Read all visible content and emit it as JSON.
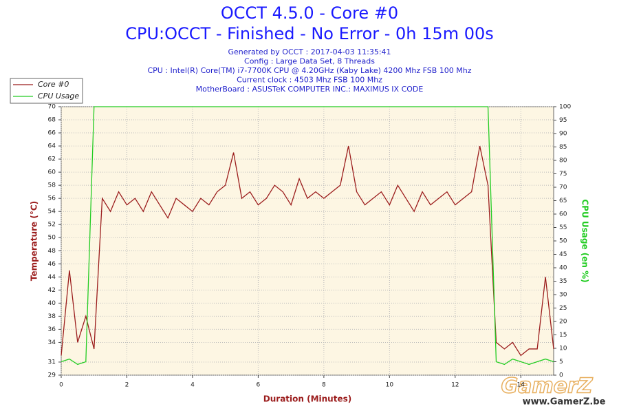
{
  "chart_data": {
    "type": "line",
    "title": "OCCT 4.5.0 - Core #0",
    "subtitle": "CPU:OCCT - Finished - No Error - 0h 15m 00s",
    "info": [
      "Generated by OCCT : 2017-04-03 11:35:41",
      "Config : Large Data Set, 8 Threads",
      "CPU : Intel(R) Core(TM) i7-7700K CPU @ 4.20GHz (Kaby Lake) 4200 Mhz FSB 100 Mhz",
      "Current clock : 4503 Mhz FSB 100 Mhz",
      "MotherBoard : ASUSTeK COMPUTER INC.: MAXIMUS IX CODE"
    ],
    "x_label": "Duration (Minutes)",
    "y_label": "Temperature (°C)",
    "y2_label": "CPU Usage (en %)",
    "watermark": "GamerZ",
    "watermark_url": "www.GamerZ.be",
    "x": [
      0,
      0.25,
      0.5,
      0.75,
      1,
      1.25,
      1.5,
      1.75,
      2,
      2.25,
      2.5,
      2.75,
      3,
      3.25,
      3.5,
      3.75,
      4,
      4.25,
      4.5,
      4.75,
      5,
      5.25,
      5.5,
      5.75,
      6,
      6.25,
      6.5,
      6.75,
      7,
      7.25,
      7.5,
      7.75,
      8,
      8.25,
      8.5,
      8.75,
      9,
      9.25,
      9.5,
      9.75,
      10,
      10.25,
      10.5,
      10.75,
      11,
      11.25,
      11.5,
      11.75,
      12,
      12.25,
      12.5,
      12.75,
      13,
      13.25,
      13.5,
      13.75,
      14,
      14.25,
      14.5,
      14.75,
      15
    ],
    "series": [
      {
        "name": "Core #0",
        "color": "#9b1c1c",
        "values": [
          32,
          45,
          34,
          38,
          33,
          56,
          54,
          57,
          55,
          56,
          54,
          57,
          55,
          53,
          56,
          55,
          54,
          56,
          55,
          57,
          58,
          63,
          56,
          57,
          55,
          56,
          58,
          57,
          55,
          59,
          56,
          57,
          56,
          57,
          58,
          64,
          57,
          55,
          56,
          57,
          55,
          58,
          56,
          54,
          57,
          55,
          56,
          57,
          55,
          56,
          57,
          64,
          58,
          34,
          33,
          34,
          32,
          33,
          33,
          44,
          33
        ]
      },
      {
        "name": "CPU Usage",
        "color": "#22cc22",
        "axis": "y2",
        "values": [
          5,
          6,
          4,
          5,
          100,
          100,
          100,
          100,
          100,
          100,
          100,
          100,
          100,
          100,
          100,
          100,
          100,
          100,
          100,
          100,
          100,
          100,
          100,
          100,
          100,
          100,
          100,
          100,
          100,
          100,
          100,
          100,
          100,
          100,
          100,
          100,
          100,
          100,
          100,
          100,
          100,
          100,
          100,
          100,
          100,
          100,
          100,
          100,
          100,
          100,
          100,
          100,
          100,
          5,
          4,
          6,
          5,
          4,
          5,
          6,
          5
        ]
      }
    ],
    "xlim": [
      0,
      15
    ],
    "xticks": [
      0,
      2,
      4,
      6,
      8,
      10,
      12,
      14
    ],
    "ylim": [
      29,
      70
    ],
    "yticks": [
      29,
      31,
      34,
      36,
      38,
      40,
      42,
      44,
      46,
      48,
      50,
      52,
      54,
      56,
      58,
      60,
      62,
      64,
      66,
      68,
      70
    ],
    "y2lim": [
      0,
      100
    ],
    "y2ticks": [
      0,
      5,
      10,
      15,
      20,
      25,
      30,
      35,
      40,
      45,
      50,
      55,
      60,
      65,
      70,
      75,
      80,
      85,
      90,
      95,
      100
    ],
    "grid": true,
    "legend": "top-left"
  }
}
